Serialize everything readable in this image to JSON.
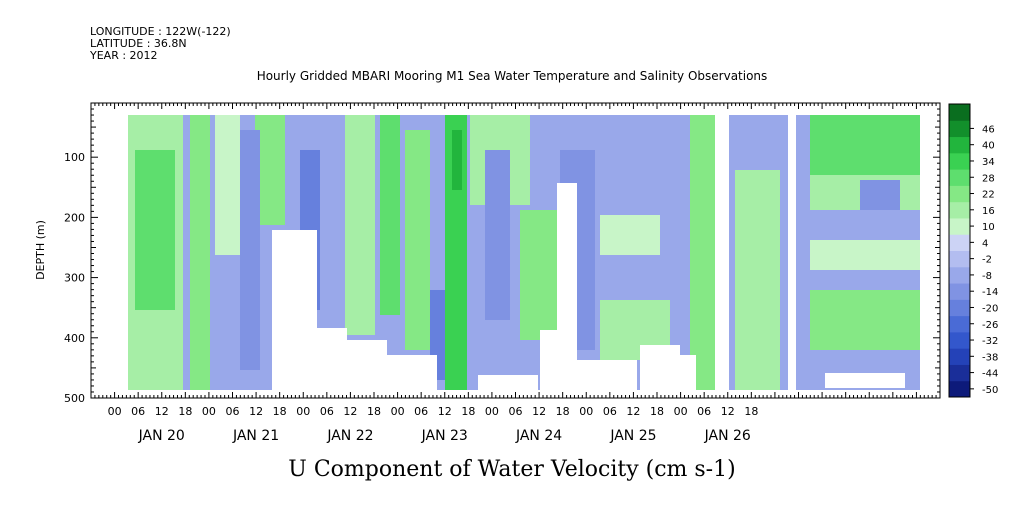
{
  "header": {
    "longitude": "LONGITUDE : 122W(-122)",
    "latitude": "LATITUDE : 36.8N",
    "year": "YEAR : 2012"
  },
  "chart_data": {
    "type": "heatmap",
    "title": "Hourly Gridded MBARI Mooring M1 Sea Water Temperature and Salinity Observations",
    "xlabel": "U Component of Water Velocity (cm s-1)",
    "ylabel": "DEPTH (m)",
    "ylim": [
      500,
      10
    ],
    "y_ticks": [
      100,
      200,
      300,
      400,
      500
    ],
    "y_tick_labels": [
      "100",
      "200",
      "300",
      "400",
      "500"
    ],
    "x_range_hours": [
      -6,
      210
    ],
    "x_hour_ticks": [
      "00",
      "06",
      "12",
      "18",
      "00",
      "06",
      "12",
      "18",
      "00",
      "06",
      "12",
      "18",
      "00",
      "06",
      "12",
      "18",
      "00",
      "06",
      "12",
      "18",
      "00",
      "06",
      "12",
      "18",
      "00",
      "06",
      "12",
      "18"
    ],
    "x_date_labels": [
      "JAN 20",
      "JAN 21",
      "JAN 22",
      "JAN 23",
      "JAN 24",
      "JAN 25",
      "JAN 26"
    ],
    "colorbar_levels": [
      -50,
      -44,
      -38,
      -32,
      -26,
      -20,
      -14,
      -8,
      -2,
      4,
      10,
      16,
      22,
      28,
      34,
      40,
      46
    ],
    "colorbar_labels": [
      "46",
      "40",
      "34",
      "28",
      "22",
      "16",
      "10",
      "4",
      "-2",
      "-8",
      "-14",
      "-20",
      "-26",
      "-32",
      "-38",
      "-44",
      "-50"
    ],
    "colorbar_colors": [
      "#0d1a7a",
      "#1a2e99",
      "#2442b8",
      "#3357cc",
      "#4a6bd6",
      "#6680dd",
      "#8093e3",
      "#99a8ea",
      "#b3bdf0",
      "#ccd3f5",
      "#c8f5c8",
      "#a6eea6",
      "#85e885",
      "#5ede6e",
      "#3ad152",
      "#22b53d",
      "#128f2b",
      "#0a6e1f"
    ],
    "grid": false,
    "legend": "right"
  }
}
